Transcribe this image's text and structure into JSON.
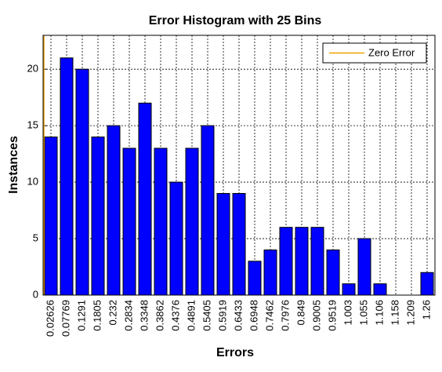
{
  "chart_data": {
    "type": "bar",
    "title": "Error Histogram with 25 Bins",
    "xlabel": "Errors",
    "ylabel": "Instances",
    "categories": [
      "0.02626",
      "0.07769",
      "0.1291",
      "0.1805",
      "0.232",
      "0.2834",
      "0.3348",
      "0.3862",
      "0.4376",
      "0.4891",
      "0.5405",
      "0.5919",
      "0.6433",
      "0.6948",
      "0.7462",
      "0.7976",
      "0.849",
      "0.9005",
      "0.9519",
      "1.003",
      "1.055",
      "1.106",
      "1.158",
      "1.209",
      "1.26"
    ],
    "values": [
      14,
      21,
      20,
      14,
      15,
      13,
      17,
      13,
      10,
      13,
      15,
      9,
      9,
      3,
      4,
      6,
      6,
      6,
      4,
      1,
      5,
      1,
      0,
      0,
      2
    ],
    "color": "#0000ff",
    "ylim": [
      0,
      23
    ],
    "yticks": [
      0,
      5,
      10,
      15,
      20
    ],
    "grid": true,
    "zero_line": {
      "name": "Zero Error",
      "color": "#f0a000"
    },
    "legend": "upper right"
  }
}
